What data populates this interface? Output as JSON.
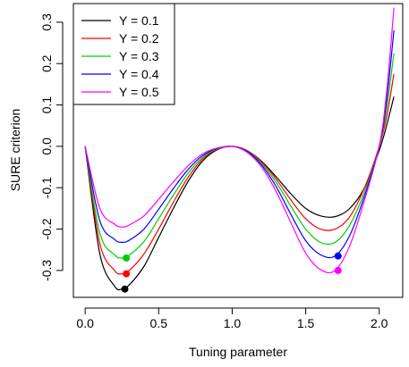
{
  "chart_data": {
    "type": "line",
    "xlabel": "Tuning parameter",
    "ylabel": "SURE criterion",
    "xlim": [
      -0.08,
      2.16
    ],
    "ylim": [
      -0.365,
      0.345
    ],
    "x_ticks": [
      0.0,
      0.5,
      1.0,
      1.5,
      2.0
    ],
    "x_tick_labels": [
      "0.0",
      "0.5",
      "1.0",
      "1.5",
      "2.0"
    ],
    "y_ticks": [
      -0.3,
      -0.2,
      -0.1,
      0.0,
      0.1,
      0.2,
      0.3
    ],
    "y_tick_labels": [
      "-0.3",
      "-0.2",
      "-0.1",
      "0.0",
      "0.1",
      "0.2",
      "0.3"
    ],
    "legend_position": "top-left",
    "grid": false,
    "x": [
      0.0,
      0.1,
      0.2,
      0.25,
      0.3,
      0.4,
      0.5,
      0.6,
      0.7,
      0.8,
      0.9,
      1.0,
      1.1,
      1.2,
      1.3,
      1.4,
      1.5,
      1.6,
      1.7,
      1.8,
      1.9,
      2.0,
      2.05,
      2.1
    ],
    "series": [
      {
        "name": "Y = 0.1",
        "color": "#000000",
        "values": [
          0.0,
          -0.26,
          -0.338,
          -0.345,
          -0.335,
          -0.29,
          -0.22,
          -0.15,
          -0.085,
          -0.035,
          -0.008,
          0.0,
          -0.01,
          -0.036,
          -0.074,
          -0.115,
          -0.15,
          -0.168,
          -0.17,
          -0.15,
          -0.1,
          -0.01,
          0.05,
          0.12
        ],
        "marker": {
          "x": 0.27,
          "y": -0.345
        }
      },
      {
        "name": "Y = 0.2",
        "color": "#ff0000",
        "values": [
          0.0,
          -0.235,
          -0.3,
          -0.308,
          -0.3,
          -0.26,
          -0.2,
          -0.135,
          -0.075,
          -0.03,
          -0.007,
          0.0,
          -0.01,
          -0.038,
          -0.08,
          -0.13,
          -0.175,
          -0.2,
          -0.2,
          -0.17,
          -0.1,
          0.0,
          0.07,
          0.175
        ],
        "marker": {
          "x": 0.28,
          "y": -0.308
        }
      },
      {
        "name": "Y = 0.3",
        "color": "#00cd00",
        "values": [
          0.0,
          -0.21,
          -0.262,
          -0.27,
          -0.263,
          -0.23,
          -0.175,
          -0.118,
          -0.065,
          -0.026,
          -0.006,
          0.0,
          -0.011,
          -0.041,
          -0.088,
          -0.145,
          -0.2,
          -0.232,
          -0.232,
          -0.19,
          -0.11,
          0.0,
          0.09,
          0.225
        ],
        "marker": {
          "x": 0.28,
          "y": -0.27
        }
      },
      {
        "name": "Y = 0.4",
        "color": "#0000ff",
        "values": [
          0.0,
          -0.18,
          -0.225,
          -0.232,
          -0.227,
          -0.2,
          -0.152,
          -0.102,
          -0.056,
          -0.022,
          -0.005,
          0.0,
          -0.012,
          -0.045,
          -0.098,
          -0.165,
          -0.228,
          -0.262,
          -0.265,
          -0.215,
          -0.12,
          0.0,
          0.11,
          0.28
        ],
        "marker": {
          "x": 1.72,
          "y": -0.265
        }
      },
      {
        "name": "Y = 0.5",
        "color": "#ff00ff",
        "values": [
          0.0,
          -0.15,
          -0.188,
          -0.195,
          -0.19,
          -0.168,
          -0.128,
          -0.086,
          -0.047,
          -0.018,
          -0.004,
          0.0,
          -0.014,
          -0.05,
          -0.11,
          -0.185,
          -0.258,
          -0.298,
          -0.3,
          -0.24,
          -0.13,
          0.0,
          0.13,
          0.335
        ],
        "marker": {
          "x": 1.72,
          "y": -0.3
        }
      }
    ]
  }
}
